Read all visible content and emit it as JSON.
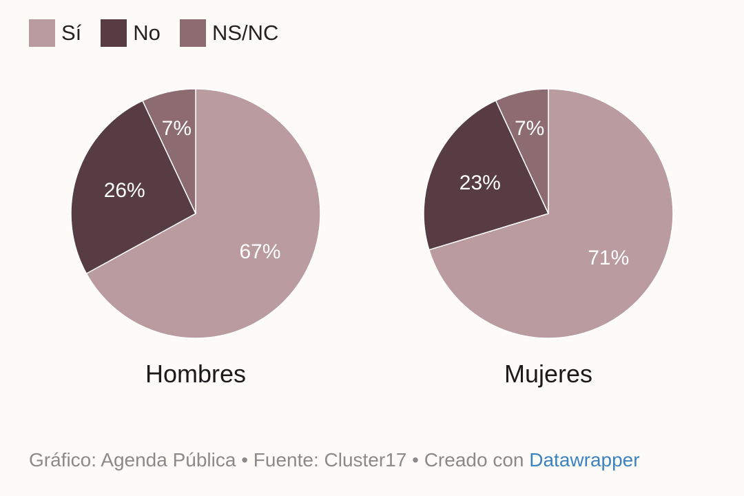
{
  "chart_data": {
    "type": "pie",
    "legend": {
      "placement": "top-left",
      "items": [
        {
          "label": "Sí",
          "color": "#b99ba0"
        },
        {
          "label": "No",
          "color": "#573c44"
        },
        {
          "label": "NS/NC",
          "color": "#8c6b71"
        }
      ]
    },
    "pies": [
      {
        "title": "Hombres",
        "slices": [
          {
            "category": "Sí",
            "value": 67,
            "label": "67%",
            "color": "#b99ba0"
          },
          {
            "category": "No",
            "value": 26,
            "label": "26%",
            "color": "#573c44"
          },
          {
            "category": "NS/NC",
            "value": 7,
            "label": "7%",
            "color": "#8c6b71"
          }
        ]
      },
      {
        "title": "Mujeres",
        "slices": [
          {
            "category": "Sí",
            "value": 71,
            "label": "71%",
            "color": "#b99ba0"
          },
          {
            "category": "No",
            "value": 23,
            "label": "23%",
            "color": "#573c44"
          },
          {
            "category": "NS/NC",
            "value": 7,
            "label": "7%",
            "color": "#8c6b71"
          }
        ]
      }
    ]
  },
  "footer": {
    "text": "Gráfico: Agenda Pública • Fuente: Cluster17 • Creado con ",
    "link": "Datawrapper"
  }
}
